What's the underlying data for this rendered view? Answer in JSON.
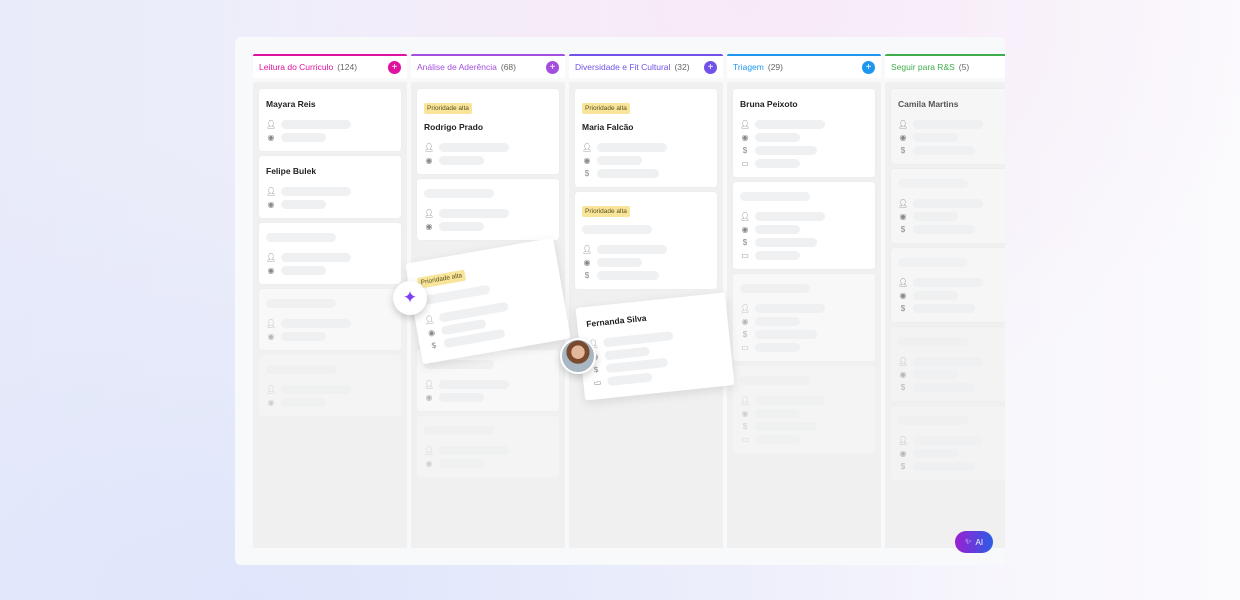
{
  "columns": [
    {
      "title": "Leitura do Curriculo",
      "count": "(124)",
      "color": "#e0119f",
      "has_add": true,
      "cards": [
        {
          "title": "Mayara Reis",
          "icons": [
            "user",
            "target"
          ]
        },
        {
          "title": "Felipe Bulek",
          "icons": [
            "user",
            "target"
          ]
        },
        {
          "icons": [
            "user",
            "target"
          ]
        },
        {
          "icons": [
            "user",
            "target"
          ],
          "fade": 1
        },
        {
          "icons": [
            "user",
            "target"
          ],
          "fade": 2
        }
      ]
    },
    {
      "title": "Análise de Aderência",
      "count": "(68)",
      "color": "#a24fe0",
      "has_add": true,
      "cards": [
        {
          "tag": "Prioridade alta",
          "title": "Rodrigo Prado",
          "icons": [
            "user",
            "target"
          ]
        },
        {
          "icons": [
            "user",
            "target"
          ]
        },
        {
          "icons": [
            "user",
            "target"
          ],
          "fade": 1,
          "gap": true
        },
        {
          "icons": [
            "user",
            "target"
          ],
          "fade": 2
        }
      ]
    },
    {
      "title": "Diversidade e Fit Cultural",
      "count": "(32)",
      "color": "#7052e8",
      "has_add": true,
      "cards": [
        {
          "tag": "Prioridade alta",
          "title": "Maria Falcão",
          "icons": [
            "user",
            "target",
            "dollar"
          ]
        },
        {
          "tag": "Prioridade alta",
          "icons": [
            "user",
            "target",
            "dollar"
          ]
        }
      ]
    },
    {
      "title": "Triagem",
      "count": "(29)",
      "color": "#1e96f0",
      "has_add": true,
      "cards": [
        {
          "title": "Bruna Peixoto",
          "icons": [
            "user",
            "target",
            "dollar",
            "calendar"
          ]
        },
        {
          "icons": [
            "user",
            "target",
            "dollar",
            "calendar"
          ]
        },
        {
          "icons": [
            "user",
            "target",
            "dollar",
            "calendar"
          ],
          "fade": 1
        },
        {
          "icons": [
            "user",
            "target",
            "dollar",
            "calendar"
          ],
          "fade": 2
        }
      ]
    },
    {
      "title": "Seguir para R&S",
      "count": "(5)",
      "color": "#3fae4a",
      "has_add": false,
      "cards": [
        {
          "title": "Camila Martins",
          "icons": [
            "user",
            "target",
            "dollar"
          ]
        },
        {
          "icons": [
            "user",
            "target",
            "dollar"
          ]
        },
        {
          "icons": [
            "user",
            "target",
            "dollar"
          ]
        },
        {
          "icons": [
            "user",
            "target",
            "dollar"
          ],
          "fade": 1
        },
        {
          "icons": [
            "user",
            "target",
            "dollar"
          ],
          "fade": 1
        }
      ]
    }
  ],
  "dragged_cards": [
    {
      "tag": "Prioridade alta",
      "icons": [
        "user",
        "target",
        "dollar"
      ]
    },
    {
      "title": "Fernanda Silva",
      "icons": [
        "user",
        "target",
        "dollar",
        "calendar"
      ]
    }
  ],
  "ai_button": {
    "label": "AI"
  }
}
